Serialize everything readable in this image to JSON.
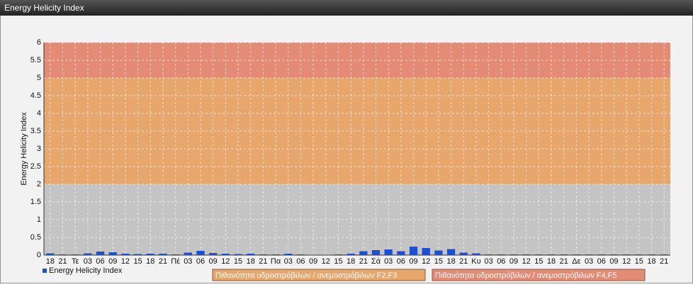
{
  "chart_data": {
    "type": "bar",
    "title": "Energy Helicity Index",
    "ylabel": "Energy Helicity Index",
    "categories": [
      "18",
      "21",
      "Τε",
      "03",
      "06",
      "09",
      "12",
      "15",
      "18",
      "21",
      "Πέ",
      "03",
      "06",
      "09",
      "12",
      "15",
      "18",
      "21",
      "Πα",
      "03",
      "06",
      "09",
      "12",
      "15",
      "18",
      "21",
      "Σά",
      "03",
      "06",
      "09",
      "12",
      "15",
      "18",
      "21",
      "Κυ",
      "03",
      "06",
      "09",
      "12",
      "15",
      "18",
      "21",
      "Δε",
      "03",
      "06",
      "09",
      "12",
      "15",
      "18",
      "21"
    ],
    "series": [
      {
        "name": "Energy Helicity Index",
        "color": "#1a4fd8",
        "values": [
          0.05,
          0.02,
          0.02,
          0.05,
          0.1,
          0.08,
          0.04,
          0.03,
          0.04,
          0.04,
          0.02,
          0.07,
          0.12,
          0.06,
          0.04,
          0.03,
          0.04,
          0.02,
          0.02,
          0.04,
          0.02,
          0.01,
          0.01,
          0.02,
          0.04,
          0.11,
          0.14,
          0.16,
          0.11,
          0.24,
          0.2,
          0.13,
          0.17,
          0.07,
          0.05,
          0.02,
          0.02,
          0.02,
          0.02,
          0.02,
          0.02,
          0.02,
          0.02,
          0.02,
          0.02,
          0.02,
          0.02,
          0.02,
          0.02,
          0.02
        ]
      }
    ],
    "bands": [
      {
        "from": 0,
        "to": 2,
        "color": "#c4c4c4"
      },
      {
        "from": 2,
        "to": 5,
        "color": "#e6a66c",
        "label": "Πιθανότητα υδροστρόβιλων / ανεμοστρόβιλων F2,F3"
      },
      {
        "from": 5,
        "to": 6,
        "color": "#e48b76",
        "label": "Πιθανότητα υδροστρόβιλων / ανεμοστρόβιλων F4,F5"
      }
    ],
    "ylim": [
      0,
      6
    ],
    "yticks": [
      0,
      0.5,
      1,
      1.5,
      2,
      2.5,
      3,
      3.5,
      4,
      4.5,
      5,
      5.5,
      6
    ],
    "grid": true
  }
}
